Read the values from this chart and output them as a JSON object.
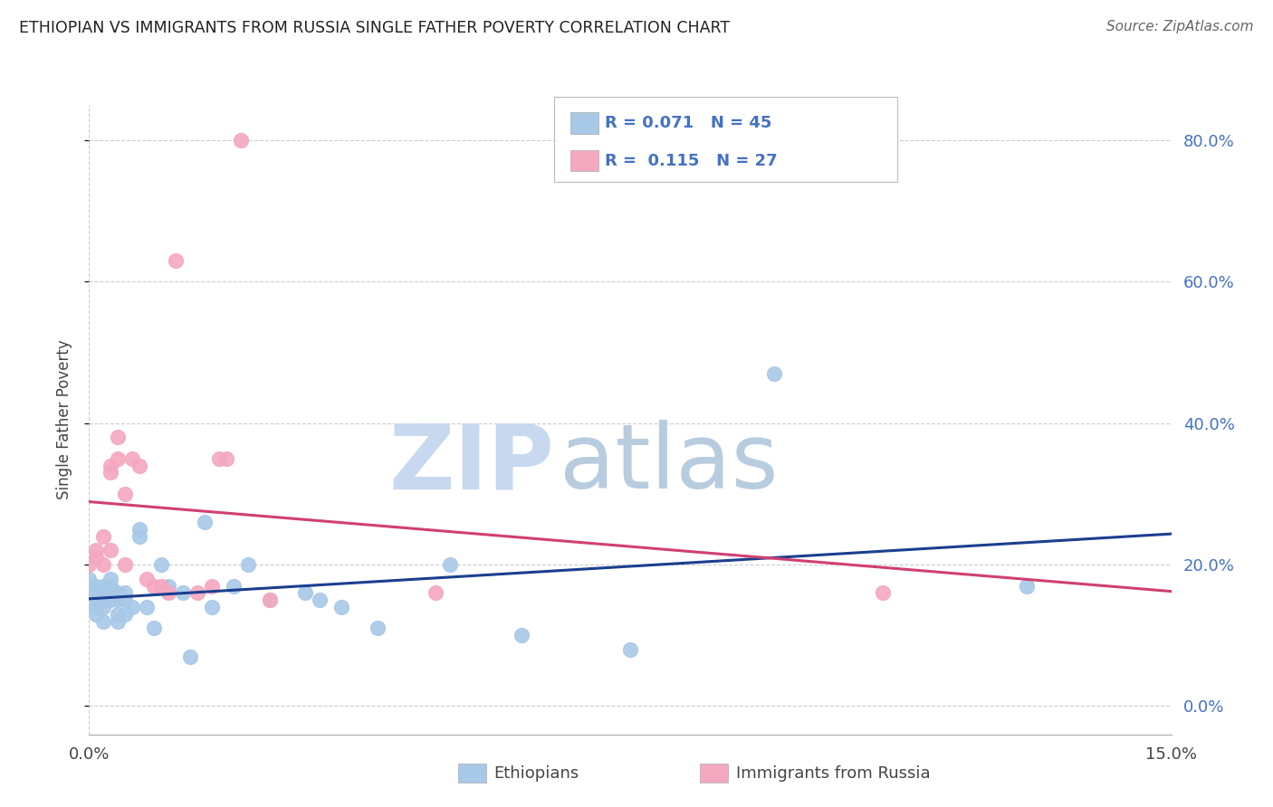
{
  "title": "ETHIOPIAN VS IMMIGRANTS FROM RUSSIA SINGLE FATHER POVERTY CORRELATION CHART",
  "source": "Source: ZipAtlas.com",
  "ylabel": "Single Father Poverty",
  "legend_label1": "R = 0.071   N = 45",
  "legend_label2": "R =  0.115   N = 27",
  "legend_bottom1": "Ethiopians",
  "legend_bottom2": "Immigrants from Russia",
  "color_ethiopian": "#a8c8e8",
  "color_russia": "#f4a8c0",
  "line_color_ethiopian": "#1a3f8f",
  "line_color_russia": "#d04070",
  "watermark_zip": "ZIP",
  "watermark_atlas": "atlas",
  "watermark_color": "#dce8f4",
  "xmin": 0.0,
  "xmax": 0.15,
  "ymin": -0.04,
  "ymax": 0.85,
  "ethiopian_x": [
    0.0,
    0.001,
    0.001,
    0.001,
    0.001,
    0.001,
    0.002,
    0.002,
    0.002,
    0.002,
    0.002,
    0.003,
    0.003,
    0.003,
    0.003,
    0.004,
    0.004,
    0.004,
    0.004,
    0.005,
    0.005,
    0.005,
    0.006,
    0.007,
    0.007,
    0.008,
    0.009,
    0.01,
    0.011,
    0.013,
    0.014,
    0.016,
    0.017,
    0.02,
    0.022,
    0.025,
    0.03,
    0.032,
    0.035,
    0.04,
    0.05,
    0.06,
    0.075,
    0.095,
    0.13
  ],
  "ethiopian_y": [
    0.18,
    0.17,
    0.16,
    0.15,
    0.14,
    0.13,
    0.17,
    0.16,
    0.15,
    0.14,
    0.12,
    0.18,
    0.17,
    0.16,
    0.15,
    0.16,
    0.15,
    0.13,
    0.12,
    0.16,
    0.15,
    0.13,
    0.14,
    0.25,
    0.24,
    0.14,
    0.11,
    0.2,
    0.17,
    0.16,
    0.07,
    0.26,
    0.14,
    0.17,
    0.2,
    0.15,
    0.16,
    0.15,
    0.14,
    0.11,
    0.2,
    0.1,
    0.08,
    0.47,
    0.17
  ],
  "russia_x": [
    0.0,
    0.001,
    0.001,
    0.002,
    0.002,
    0.003,
    0.003,
    0.003,
    0.004,
    0.004,
    0.005,
    0.005,
    0.006,
    0.007,
    0.008,
    0.009,
    0.01,
    0.011,
    0.012,
    0.015,
    0.017,
    0.018,
    0.019,
    0.021,
    0.025,
    0.048,
    0.11
  ],
  "russia_y": [
    0.2,
    0.22,
    0.21,
    0.24,
    0.2,
    0.34,
    0.33,
    0.22,
    0.38,
    0.35,
    0.2,
    0.3,
    0.35,
    0.34,
    0.18,
    0.17,
    0.17,
    0.16,
    0.63,
    0.16,
    0.17,
    0.35,
    0.35,
    0.8,
    0.15,
    0.16,
    0.16
  ]
}
